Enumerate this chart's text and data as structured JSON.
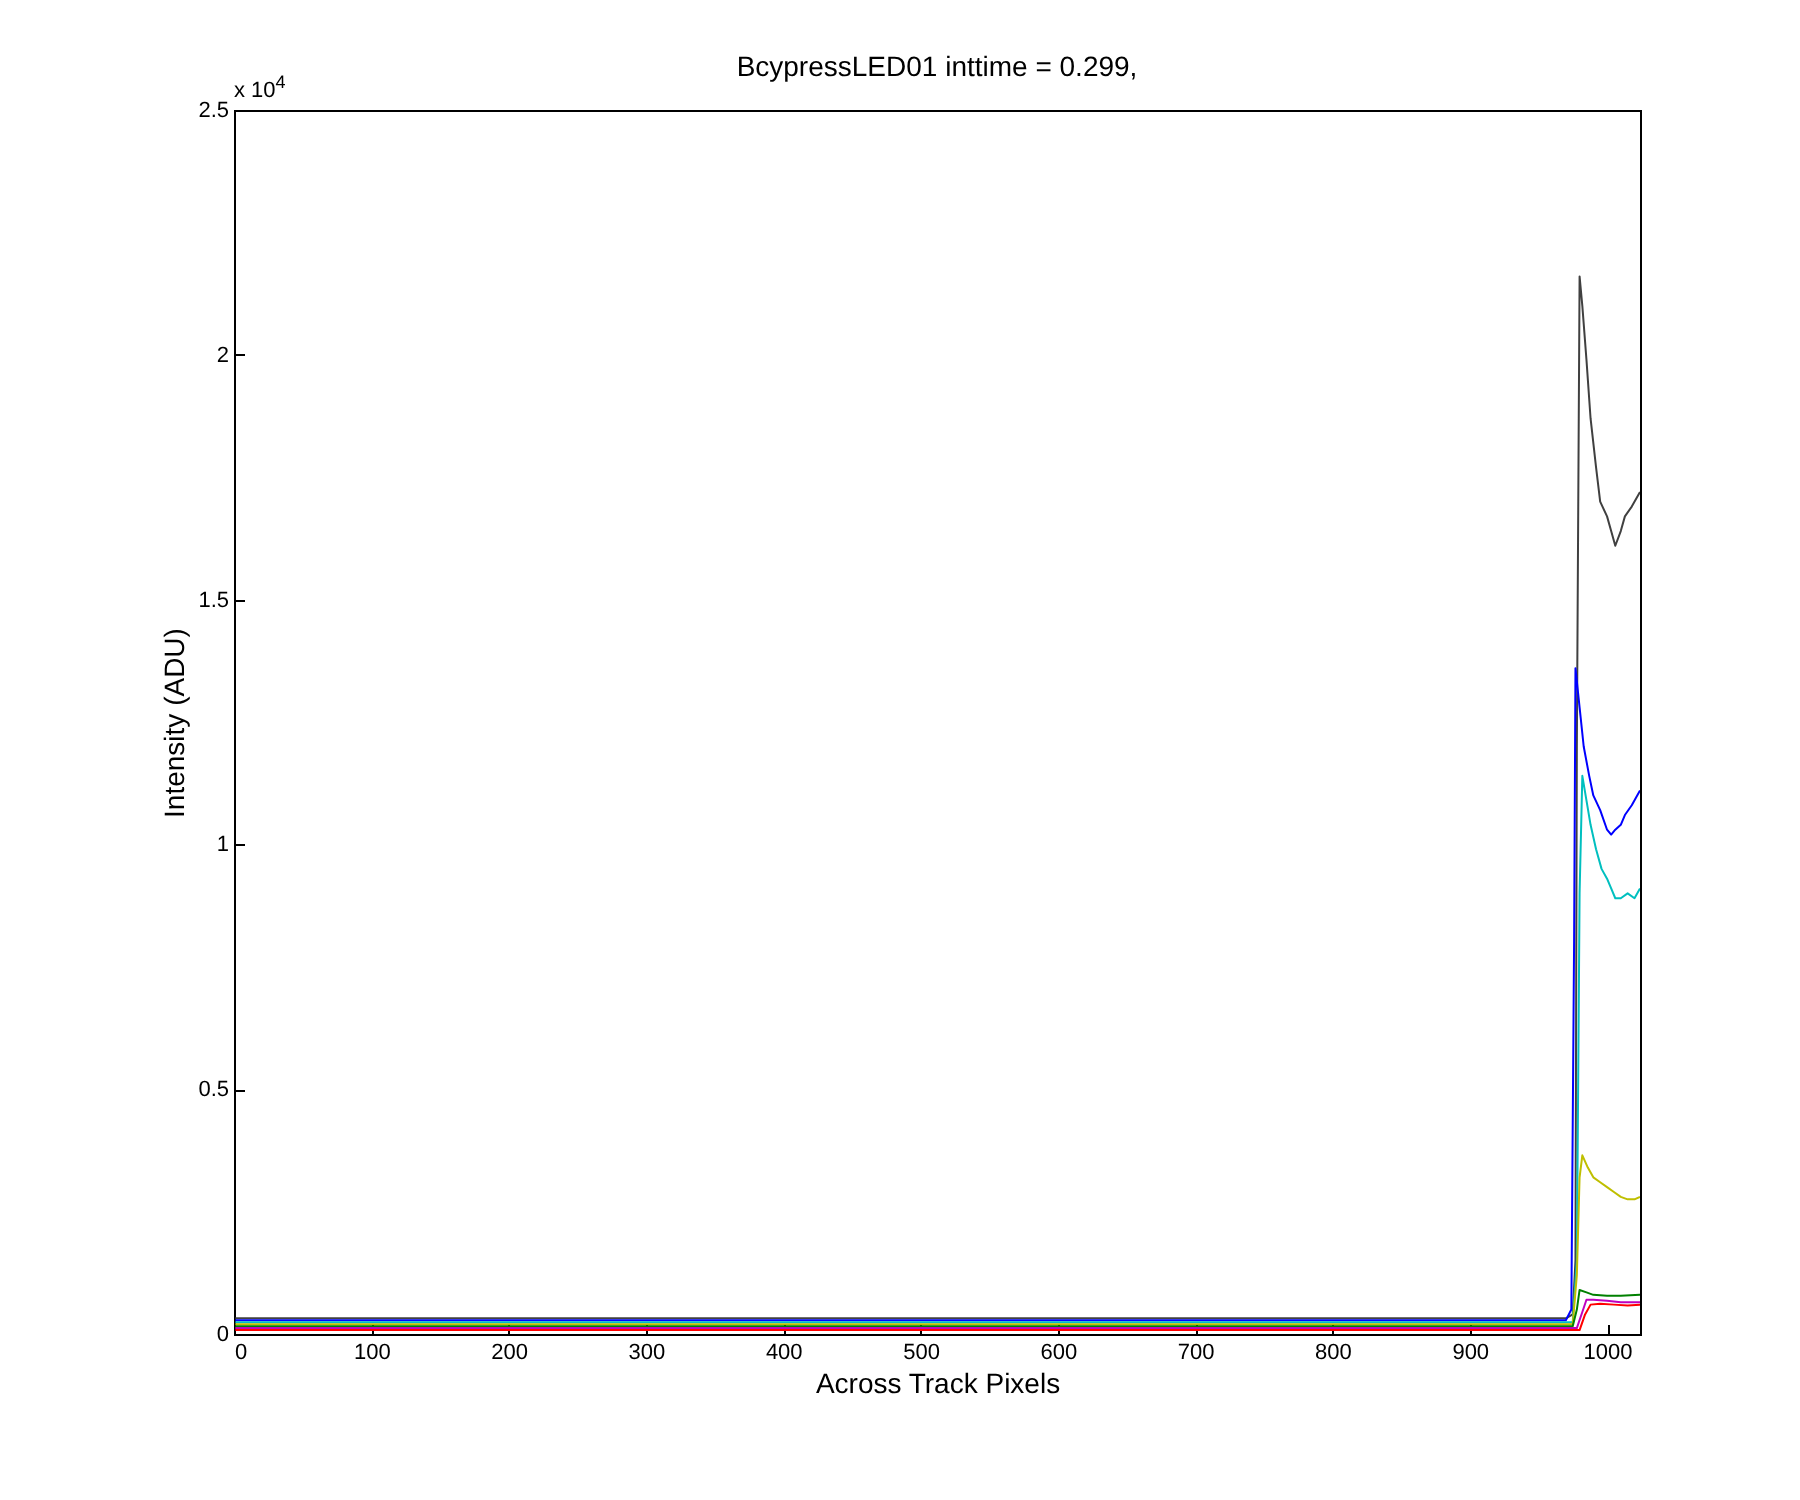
{
  "chart_data": {
    "type": "line",
    "title": "BcypressLED01 inttime = 0.299,",
    "xlabel": "Across Track Pixels",
    "ylabel": "Intensity (ADU)",
    "annotations": [
      "x 10$^{4}$"
    ],
    "xlim": [
      0,
      1024
    ],
    "xticks": [
      0,
      100,
      200,
      300,
      400,
      500,
      600,
      700,
      800,
      900,
      1000
    ],
    "ylim": [
      0,
      2.5
    ],
    "yticks": [
      0,
      0.5,
      1,
      1.5,
      2,
      2.5
    ],
    "grid": false,
    "legend": false,
    "marker": "none",
    "line_style": "solid",
    "series": [
      {
        "color": "#404040",
        "x": [
          1,
          200,
          400,
          600,
          800,
          970,
          975,
          977,
          978,
          980,
          982,
          985,
          988,
          992,
          995,
          1000,
          1003,
          1006,
          1010,
          1013,
          1018,
          1024
        ],
        "values": [
          0.032,
          0.032,
          0.032,
          0.032,
          0.032,
          0.032,
          0.04,
          0.15,
          1.2,
          2.16,
          2.1,
          1.99,
          1.87,
          1.77,
          1.7,
          1.67,
          1.64,
          1.61,
          1.64,
          1.67,
          1.69,
          1.72
        ]
      },
      {
        "color": "#0000ff",
        "x": [
          1,
          200,
          400,
          600,
          800,
          970,
          974,
          976,
          977,
          980,
          983,
          987,
          990,
          995,
          1000,
          1003,
          1006,
          1010,
          1013,
          1018,
          1024
        ],
        "values": [
          0.028,
          0.028,
          0.028,
          0.028,
          0.028,
          0.028,
          0.05,
          0.8,
          1.36,
          1.28,
          1.2,
          1.14,
          1.1,
          1.07,
          1.03,
          1.02,
          1.03,
          1.04,
          1.06,
          1.08,
          1.11
        ]
      },
      {
        "color": "#00bfbf",
        "x": [
          1,
          200,
          400,
          600,
          800,
          975,
          978,
          980,
          982,
          985,
          988,
          992,
          996,
          1000,
          1003,
          1006,
          1010,
          1015,
          1020,
          1024
        ],
        "values": [
          0.024,
          0.024,
          0.024,
          0.024,
          0.024,
          0.024,
          0.15,
          0.9,
          1.14,
          1.09,
          1.04,
          0.99,
          0.95,
          0.93,
          0.91,
          0.89,
          0.89,
          0.9,
          0.89,
          0.91
        ]
      },
      {
        "color": "#bfbf00",
        "x": [
          1,
          200,
          400,
          600,
          800,
          975,
          978,
          980,
          982,
          986,
          990,
          995,
          1000,
          1005,
          1010,
          1015,
          1020,
          1024
        ],
        "values": [
          0.02,
          0.02,
          0.02,
          0.02,
          0.02,
          0.02,
          0.12,
          0.32,
          0.365,
          0.34,
          0.32,
          0.31,
          0.3,
          0.29,
          0.28,
          0.275,
          0.275,
          0.28
        ]
      },
      {
        "color": "#008000",
        "x": [
          1,
          200,
          400,
          600,
          800,
          975,
          978,
          980,
          985,
          990,
          1000,
          1010,
          1024
        ],
        "values": [
          0.016,
          0.016,
          0.016,
          0.016,
          0.016,
          0.016,
          0.05,
          0.09,
          0.085,
          0.08,
          0.078,
          0.078,
          0.08
        ]
      },
      {
        "color": "#bf00bf",
        "x": [
          1,
          200,
          400,
          600,
          800,
          978,
          982,
          985,
          990,
          1000,
          1010,
          1024
        ],
        "values": [
          0.012,
          0.012,
          0.012,
          0.012,
          0.012,
          0.012,
          0.045,
          0.07,
          0.07,
          0.068,
          0.065,
          0.065
        ]
      },
      {
        "color": "#ff0000",
        "x": [
          1,
          200,
          400,
          600,
          800,
          980,
          984,
          988,
          995,
          1005,
          1015,
          1024
        ],
        "values": [
          0.008,
          0.008,
          0.008,
          0.008,
          0.008,
          0.008,
          0.04,
          0.06,
          0.062,
          0.06,
          0.058,
          0.06
        ]
      }
    ]
  }
}
